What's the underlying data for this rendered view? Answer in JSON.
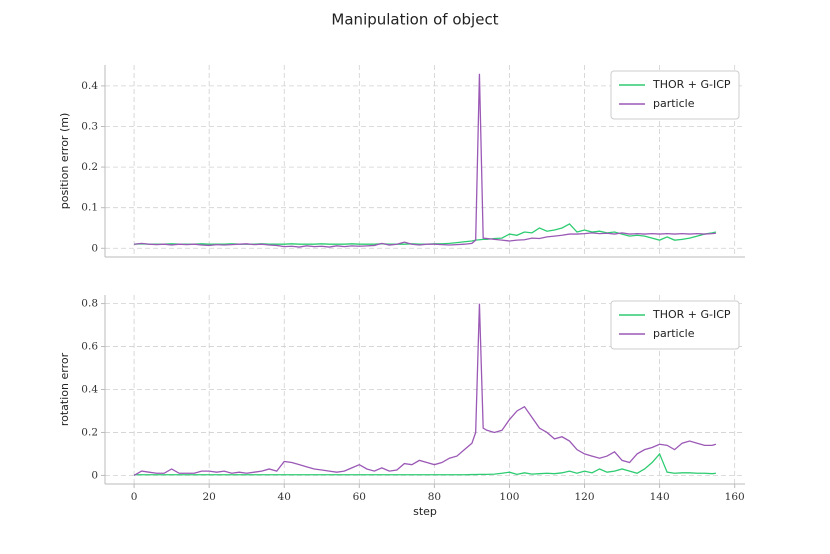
{
  "title": "Manipulation of object",
  "chart_data": [
    {
      "type": "line",
      "ylabel": "position error (m)",
      "legend": "upper right",
      "grid": true,
      "xlim": [
        -7.75,
        162.75
      ],
      "ylim": [
        -0.0215,
        0.4515
      ],
      "yticks": [
        0.0,
        0.1,
        0.2,
        0.3,
        0.4
      ],
      "x": [
        0,
        2,
        4,
        6,
        8,
        10,
        12,
        14,
        16,
        18,
        20,
        22,
        24,
        26,
        28,
        30,
        32,
        34,
        36,
        38,
        40,
        42,
        44,
        46,
        48,
        50,
        52,
        54,
        56,
        58,
        60,
        62,
        64,
        66,
        68,
        70,
        72,
        74,
        76,
        78,
        80,
        82,
        84,
        86,
        88,
        90,
        91,
        92,
        93,
        94,
        96,
        98,
        100,
        102,
        104,
        106,
        108,
        110,
        112,
        114,
        116,
        118,
        120,
        122,
        124,
        126,
        128,
        130,
        132,
        134,
        136,
        138,
        140,
        142,
        144,
        146,
        148,
        150,
        152,
        154,
        155
      ],
      "series": [
        {
          "name": "THOR + G-ICP",
          "color": "#2ecc71",
          "values": [
            0.01,
            0.011,
            0.01,
            0.01,
            0.01,
            0.011,
            0.01,
            0.01,
            0.01,
            0.011,
            0.01,
            0.01,
            0.01,
            0.011,
            0.01,
            0.01,
            0.01,
            0.011,
            0.01,
            0.01,
            0.01,
            0.011,
            0.01,
            0.01,
            0.01,
            0.011,
            0.01,
            0.01,
            0.01,
            0.011,
            0.01,
            0.01,
            0.01,
            0.011,
            0.01,
            0.01,
            0.01,
            0.011,
            0.01,
            0.01,
            0.011,
            0.011,
            0.012,
            0.014,
            0.016,
            0.018,
            0.02,
            0.021,
            0.022,
            0.022,
            0.024,
            0.025,
            0.035,
            0.032,
            0.04,
            0.038,
            0.05,
            0.042,
            0.045,
            0.05,
            0.06,
            0.04,
            0.045,
            0.04,
            0.042,
            0.038,
            0.04,
            0.035,
            0.03,
            0.032,
            0.03,
            0.025,
            0.02,
            0.028,
            0.02,
            0.022,
            0.025,
            0.03,
            0.035,
            0.038,
            0.04
          ]
        },
        {
          "name": "particle",
          "color": "#9b59b6",
          "values": [
            0.01,
            0.012,
            0.01,
            0.009,
            0.01,
            0.008,
            0.01,
            0.009,
            0.01,
            0.008,
            0.007,
            0.009,
            0.008,
            0.009,
            0.01,
            0.011,
            0.009,
            0.01,
            0.008,
            0.007,
            0.004,
            0.005,
            0.003,
            0.006,
            0.004,
            0.005,
            0.003,
            0.006,
            0.004,
            0.006,
            0.005,
            0.006,
            0.007,
            0.012,
            0.008,
            0.01,
            0.015,
            0.01,
            0.008,
            0.01,
            0.01,
            0.009,
            0.008,
            0.009,
            0.01,
            0.012,
            0.02,
            0.43,
            0.025,
            0.024,
            0.022,
            0.02,
            0.018,
            0.02,
            0.021,
            0.025,
            0.024,
            0.028,
            0.03,
            0.032,
            0.035,
            0.035,
            0.036,
            0.038,
            0.036,
            0.037,
            0.035,
            0.038,
            0.035,
            0.036,
            0.035,
            0.036,
            0.035,
            0.036,
            0.035,
            0.036,
            0.035,
            0.036,
            0.035,
            0.036,
            0.037
          ]
        }
      ]
    },
    {
      "type": "line",
      "xlabel": "step",
      "ylabel": "rotation error",
      "legend": "upper right",
      "grid": true,
      "xlim": [
        -7.75,
        162.75
      ],
      "xticks": [
        0,
        20,
        40,
        60,
        80,
        100,
        120,
        140,
        160
      ],
      "ylim": [
        -0.04,
        0.84
      ],
      "yticks": [
        0.0,
        0.2,
        0.4,
        0.6,
        0.8
      ],
      "x": [
        0,
        2,
        4,
        6,
        8,
        10,
        12,
        14,
        16,
        18,
        20,
        22,
        24,
        26,
        28,
        30,
        32,
        34,
        36,
        38,
        40,
        42,
        44,
        46,
        48,
        50,
        52,
        54,
        56,
        58,
        60,
        62,
        64,
        66,
        68,
        70,
        72,
        74,
        76,
        78,
        80,
        82,
        84,
        86,
        88,
        90,
        91,
        92,
        93,
        94,
        96,
        98,
        100,
        102,
        104,
        106,
        108,
        110,
        112,
        114,
        116,
        118,
        120,
        122,
        124,
        126,
        128,
        130,
        132,
        134,
        136,
        138,
        140,
        142,
        144,
        146,
        148,
        150,
        152,
        154,
        155
      ],
      "series": [
        {
          "name": "THOR + G-ICP",
          "color": "#2ecc71",
          "values": [
            0.003,
            0.003,
            0.003,
            0.003,
            0.003,
            0.003,
            0.003,
            0.003,
            0.003,
            0.003,
            0.003,
            0.003,
            0.003,
            0.003,
            0.003,
            0.003,
            0.003,
            0.003,
            0.003,
            0.003,
            0.003,
            0.003,
            0.003,
            0.003,
            0.003,
            0.003,
            0.003,
            0.003,
            0.003,
            0.003,
            0.003,
            0.003,
            0.003,
            0.003,
            0.003,
            0.003,
            0.003,
            0.003,
            0.003,
            0.003,
            0.003,
            0.003,
            0.003,
            0.003,
            0.003,
            0.004,
            0.004,
            0.005,
            0.005,
            0.005,
            0.006,
            0.01,
            0.015,
            0.005,
            0.012,
            0.006,
            0.008,
            0.01,
            0.008,
            0.012,
            0.02,
            0.01,
            0.02,
            0.012,
            0.03,
            0.015,
            0.02,
            0.03,
            0.02,
            0.01,
            0.03,
            0.06,
            0.1,
            0.015,
            0.01,
            0.012,
            0.012,
            0.01,
            0.01,
            0.008,
            0.01
          ]
        },
        {
          "name": "particle",
          "color": "#9b59b6",
          "values": [
            0.0,
            0.02,
            0.015,
            0.01,
            0.01,
            0.03,
            0.01,
            0.01,
            0.01,
            0.02,
            0.02,
            0.015,
            0.02,
            0.01,
            0.015,
            0.01,
            0.015,
            0.02,
            0.03,
            0.02,
            0.065,
            0.06,
            0.05,
            0.04,
            0.03,
            0.025,
            0.02,
            0.015,
            0.02,
            0.035,
            0.05,
            0.03,
            0.02,
            0.035,
            0.02,
            0.025,
            0.055,
            0.05,
            0.07,
            0.06,
            0.05,
            0.06,
            0.08,
            0.09,
            0.12,
            0.15,
            0.2,
            0.8,
            0.22,
            0.21,
            0.2,
            0.21,
            0.26,
            0.3,
            0.32,
            0.27,
            0.22,
            0.2,
            0.17,
            0.18,
            0.16,
            0.12,
            0.1,
            0.09,
            0.08,
            0.09,
            0.11,
            0.07,
            0.06,
            0.1,
            0.12,
            0.13,
            0.145,
            0.14,
            0.12,
            0.15,
            0.16,
            0.15,
            0.14,
            0.14,
            0.145
          ]
        }
      ]
    }
  ]
}
